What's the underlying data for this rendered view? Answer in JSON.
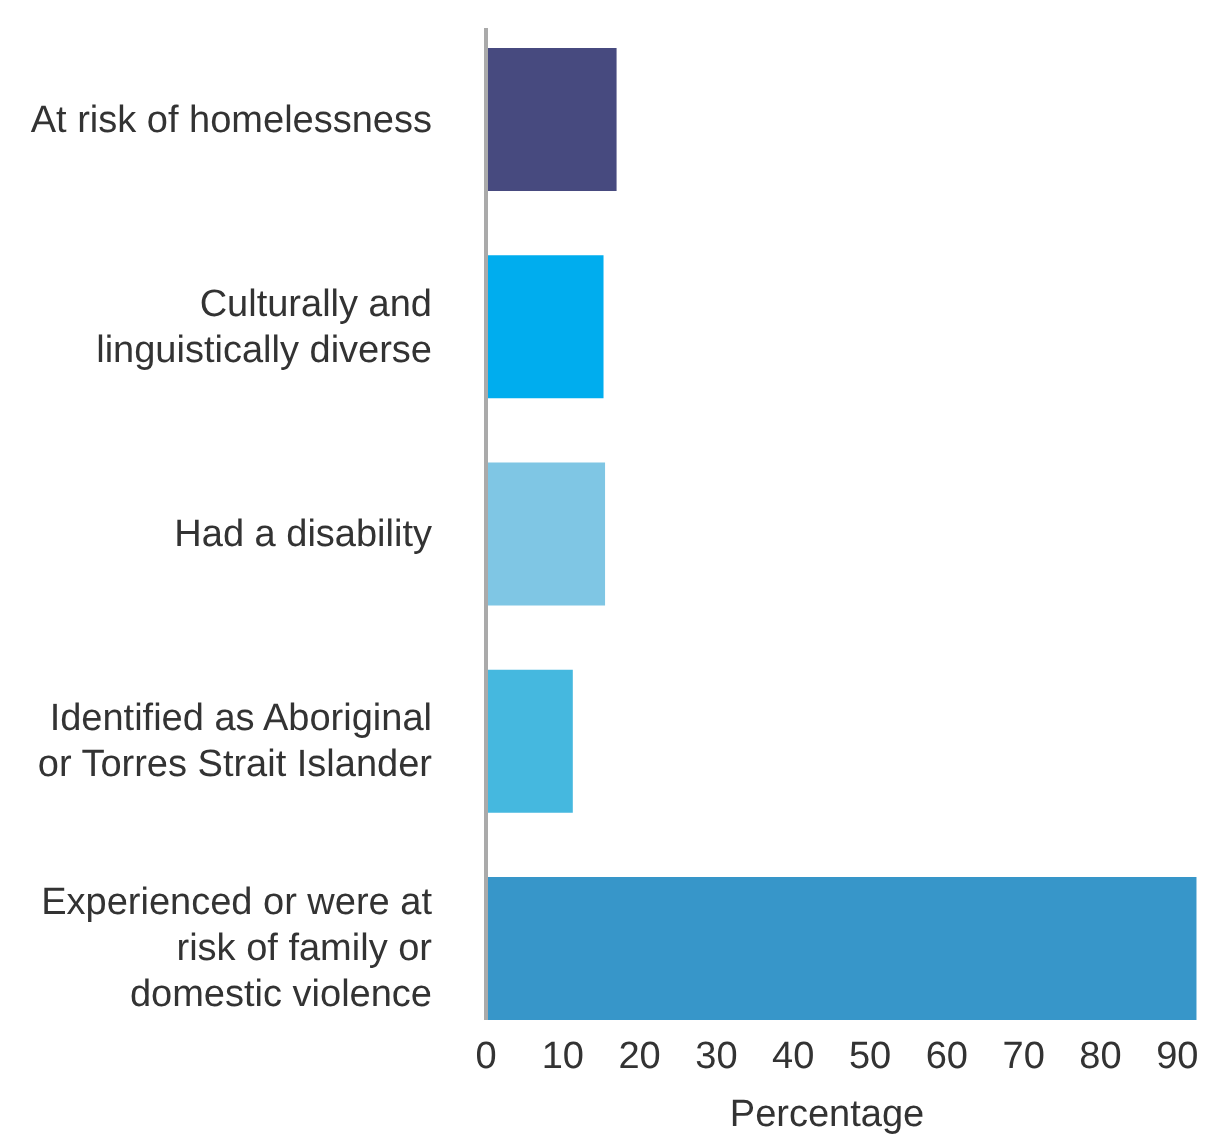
{
  "chart_data": {
    "type": "bar",
    "orientation": "horizontal",
    "xlabel": "Percentage",
    "categories": [
      "At risk of homelessness",
      "Culturally and linguistically diverse",
      "Had a disability",
      "Identified as Aboriginal or Torres Strait Islander",
      "Experienced or were at risk of family or domestic violence"
    ],
    "values": [
      17,
      15.3,
      15.5,
      11.3,
      92.5
    ],
    "colors": [
      "#474a7f",
      "#00adee",
      "#7fc6e4",
      "#45b8df",
      "#3796c9"
    ],
    "xlim": [
      0,
      94
    ],
    "xticks": [
      0,
      10,
      20,
      30,
      40,
      50,
      60,
      70,
      80,
      90
    ],
    "grid": false
  }
}
